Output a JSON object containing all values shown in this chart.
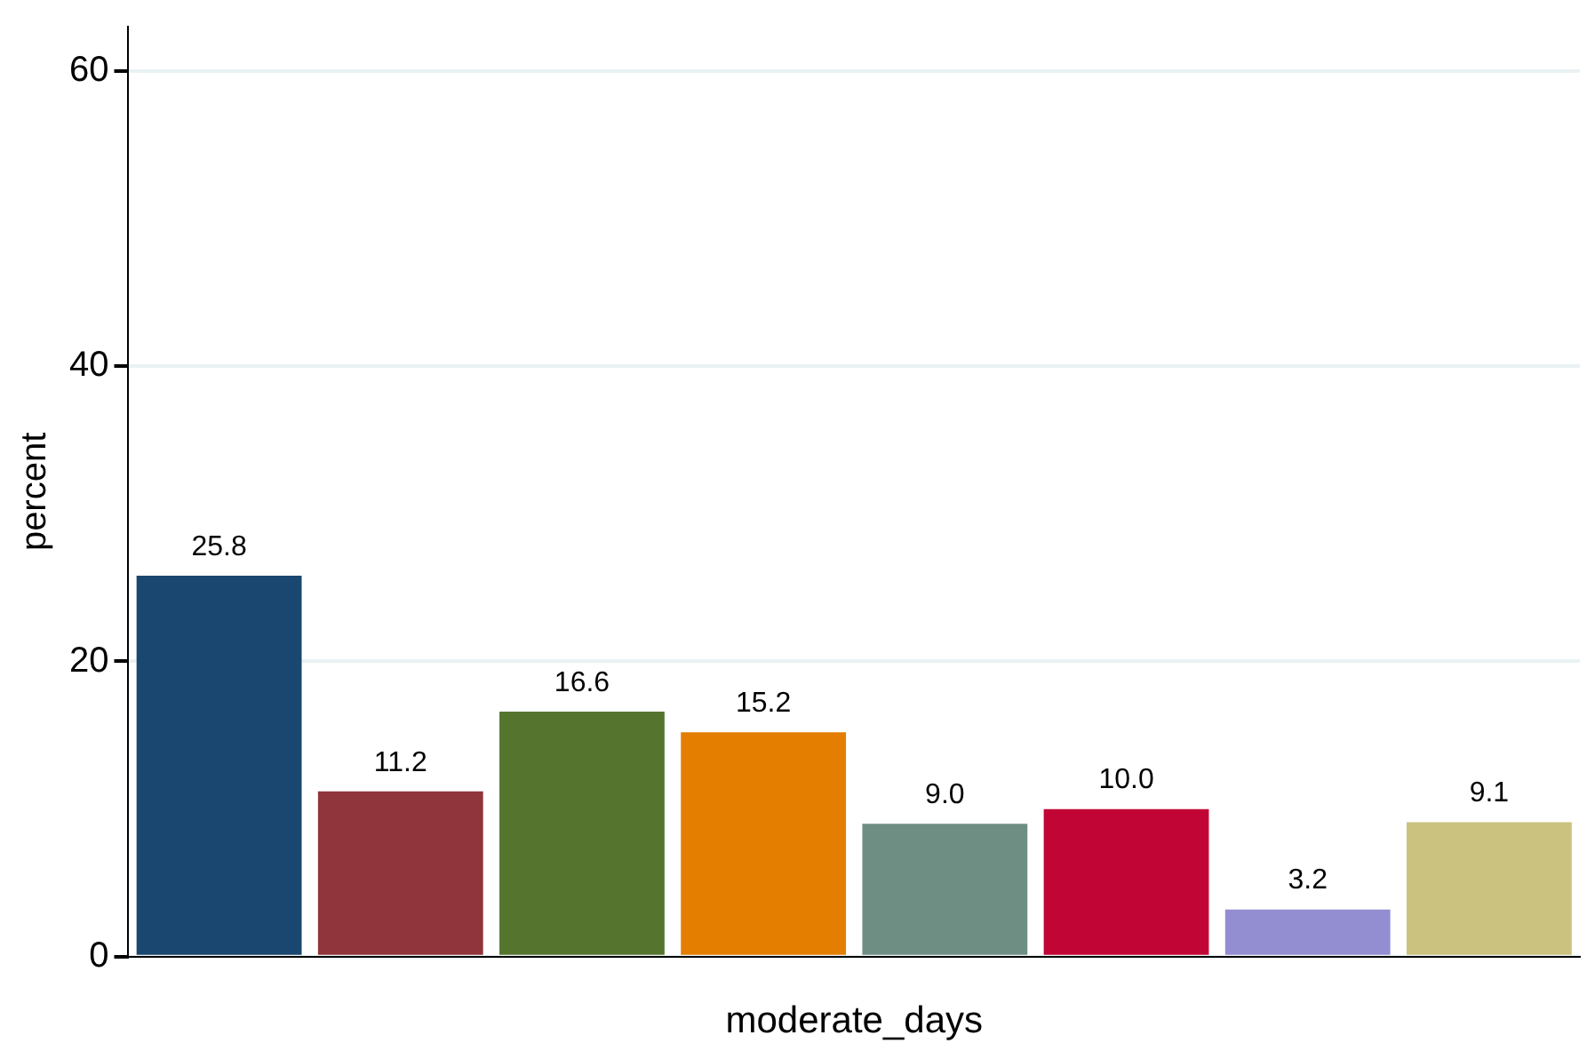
{
  "chart_data": {
    "type": "bar",
    "xlabel": "moderate_days",
    "ylabel": "percent",
    "categories": [
      null,
      null,
      null,
      null,
      null,
      null,
      null,
      null
    ],
    "values": [
      25.8,
      11.2,
      16.6,
      15.2,
      9.0,
      10.0,
      3.2,
      9.1
    ],
    "value_labels": [
      "25.8",
      "11.2",
      "16.6",
      "15.2",
      "9.0",
      "10.0",
      "3.2",
      "9.1"
    ],
    "colors": [
      "#1a476f",
      "#90353b",
      "#55752f",
      "#e37e00",
      "#6e8e84",
      "#c10534",
      "#938dd2",
      "#cac27e"
    ],
    "ylim": [
      0,
      63
    ],
    "yticks": [
      0,
      20,
      40,
      60
    ],
    "grid": "y",
    "legend": false
  }
}
